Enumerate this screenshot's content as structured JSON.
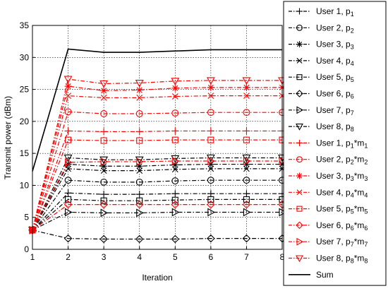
{
  "chart_data": {
    "type": "line",
    "title": "",
    "xlabel": "Iteration",
    "ylabel": "Transmit power (dBm)",
    "x": [
      1,
      2,
      3,
      4,
      5,
      6,
      7,
      8
    ],
    "xlim": [
      1,
      8
    ],
    "ylim": [
      0,
      35
    ],
    "xticks": [
      "1",
      "2",
      "3",
      "4",
      "5",
      "6",
      "7",
      "8"
    ],
    "yticks": [
      "0",
      "5",
      "10",
      "15",
      "20",
      "25",
      "30",
      "35"
    ],
    "grid": true,
    "legend_position": "right-outside",
    "series": [
      {
        "name": "User 1, p",
        "sub": "1",
        "sup_m": "",
        "color": "#000000",
        "dash": "dashdot",
        "marker": "plus",
        "values": [
          3.0,
          8.8,
          8.6,
          8.6,
          8.7,
          8.7,
          8.7,
          8.7
        ]
      },
      {
        "name": "User 2, p",
        "sub": "2",
        "sup_m": "",
        "color": "#000000",
        "dash": "dashdot",
        "marker": "circle",
        "values": [
          3.0,
          10.8,
          10.5,
          10.5,
          10.7,
          10.8,
          10.8,
          10.8
        ]
      },
      {
        "name": "User 3, p",
        "sub": "3",
        "sup_m": "",
        "color": "#000000",
        "dash": "dashdot",
        "marker": "star",
        "values": [
          3.0,
          13.3,
          13.0,
          13.0,
          13.2,
          13.3,
          13.3,
          13.3
        ]
      },
      {
        "name": "User 4, p",
        "sub": "4",
        "sup_m": "",
        "color": "#000000",
        "dash": "dashdot",
        "marker": "x",
        "values": [
          3.0,
          12.6,
          12.3,
          12.3,
          12.5,
          12.6,
          12.6,
          12.6
        ]
      },
      {
        "name": "User 5, p",
        "sub": "5",
        "sup_m": "",
        "color": "#000000",
        "dash": "dashdot",
        "marker": "square",
        "values": [
          3.0,
          7.8,
          7.6,
          7.6,
          7.7,
          7.8,
          7.8,
          7.8
        ]
      },
      {
        "name": "User 6, p",
        "sub": "6",
        "sup_m": "",
        "color": "#000000",
        "dash": "dashdot",
        "marker": "diamond",
        "values": [
          3.0,
          1.7,
          1.6,
          1.6,
          1.6,
          1.7,
          1.7,
          1.7
        ]
      },
      {
        "name": "User 7, p",
        "sub": "7",
        "sup_m": "",
        "color": "#000000",
        "dash": "dashdot",
        "marker": "triangle-right",
        "values": [
          3.0,
          5.8,
          5.7,
          5.7,
          5.8,
          5.8,
          5.8,
          5.8
        ]
      },
      {
        "name": "User 8, p",
        "sub": "8",
        "sup_m": "",
        "color": "#000000",
        "dash": "dashdot",
        "marker": "triangle-down",
        "values": [
          3.0,
          14.3,
          14.0,
          14.0,
          14.2,
          14.3,
          14.3,
          14.3
        ]
      },
      {
        "name": "User 1, p",
        "sub": "1",
        "sup_m": "1",
        "color": "#ff0000",
        "dash": "dashdot",
        "marker": "plus",
        "values": [
          3.0,
          18.5,
          18.4,
          18.4,
          18.5,
          18.5,
          18.5,
          18.5
        ]
      },
      {
        "name": "User 2, p",
        "sub": "2",
        "sup_m": "2",
        "color": "#ff0000",
        "dash": "dashdot",
        "marker": "circle",
        "values": [
          3.0,
          21.5,
          21.2,
          21.2,
          21.3,
          21.4,
          21.4,
          21.4
        ]
      },
      {
        "name": "User 3, p",
        "sub": "3",
        "sup_m": "3",
        "color": "#ff0000",
        "dash": "dashdot",
        "marker": "star",
        "values": [
          3.0,
          25.5,
          24.8,
          24.9,
          25.2,
          25.3,
          25.3,
          25.3
        ]
      },
      {
        "name": "User 4, p",
        "sub": "4",
        "sup_m": "4",
        "color": "#ff0000",
        "dash": "dashdot",
        "marker": "x",
        "values": [
          3.0,
          24.0,
          23.7,
          23.7,
          23.9,
          24.0,
          24.0,
          24.0
        ]
      },
      {
        "name": "User 5, p",
        "sub": "5",
        "sup_m": "5",
        "color": "#ff0000",
        "dash": "dashdot",
        "marker": "square",
        "values": [
          3.0,
          17.1,
          17.0,
          17.0,
          17.1,
          17.1,
          17.1,
          17.1
        ]
      },
      {
        "name": "User 6, p",
        "sub": "6",
        "sup_m": "6",
        "color": "#ff0000",
        "dash": "dashdot",
        "marker": "diamond",
        "values": [
          3.0,
          7.0,
          7.0,
          7.0,
          7.0,
          7.0,
          7.0,
          7.0
        ]
      },
      {
        "name": "User 7, p",
        "sub": "7",
        "sup_m": "7",
        "color": "#ff0000",
        "dash": "dashdot",
        "marker": "triangle-right",
        "values": [
          3.0,
          13.6,
          13.7,
          13.7,
          13.8,
          13.8,
          13.8,
          13.8
        ]
      },
      {
        "name": "User 8, p",
        "sub": "8",
        "sup_m": "8",
        "color": "#ff0000",
        "dash": "dashdot",
        "marker": "triangle-down",
        "values": [
          3.0,
          26.6,
          25.9,
          26.0,
          26.3,
          26.4,
          26.4,
          26.4
        ]
      },
      {
        "name": "Sum",
        "sub": "",
        "sup_m": "",
        "color": "#000000",
        "dash": "solid",
        "marker": "none",
        "values": [
          12.2,
          31.3,
          30.8,
          30.8,
          31.0,
          31.2,
          31.2,
          31.2
        ]
      }
    ]
  }
}
